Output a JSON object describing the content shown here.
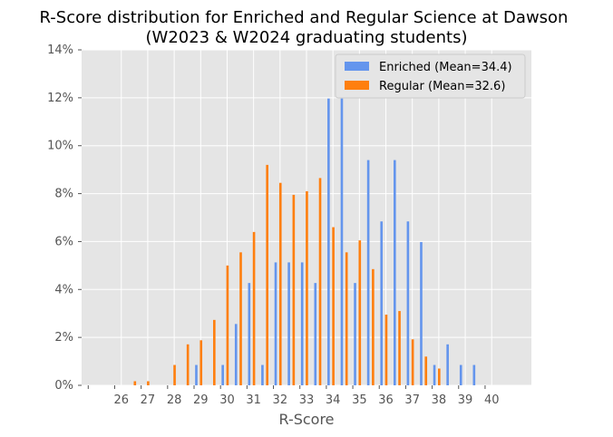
{
  "chart_data": {
    "type": "bar",
    "title": "R-Score distribution for Enriched and Regular Science at Dawson",
    "subtitle": "(W2023 & W2024 graduating students)",
    "xlabel": "R-Score",
    "ylabel": "",
    "x_ticks": [
      26,
      27,
      28,
      29,
      30,
      31,
      32,
      33,
      34,
      35,
      36,
      37,
      38,
      39,
      40
    ],
    "y_ticks": [
      "0%",
      "2%",
      "4%",
      "6%",
      "8%",
      "10%",
      "12%",
      "14%"
    ],
    "ylim": [
      0,
      14
    ],
    "xlim": [
      24.5,
      41.5
    ],
    "bin_width": 0.5,
    "grid": true,
    "legend_position": "top-right",
    "colors": {
      "enriched": "#6495ED",
      "regular": "#FF7F0E",
      "background": "#E5E5E5",
      "grid": "#FFFFFF"
    },
    "series": [
      {
        "name": "Enriched (Mean=34.4)",
        "color": "#6495ED",
        "offset": 0,
        "points": [
          {
            "x": 29,
            "y": 0.85
          },
          {
            "x": 30,
            "y": 0.85
          },
          {
            "x": 30.5,
            "y": 2.56
          },
          {
            "x": 31,
            "y": 4.27
          },
          {
            "x": 31.5,
            "y": 0.85
          },
          {
            "x": 32,
            "y": 5.13
          },
          {
            "x": 32.5,
            "y": 5.13
          },
          {
            "x": 33,
            "y": 5.13
          },
          {
            "x": 33.5,
            "y": 4.27
          },
          {
            "x": 34,
            "y": 11.97
          },
          {
            "x": 34.5,
            "y": 11.97
          },
          {
            "x": 35,
            "y": 4.27
          },
          {
            "x": 35.5,
            "y": 9.4
          },
          {
            "x": 36,
            "y": 6.84
          },
          {
            "x": 36.5,
            "y": 9.4
          },
          {
            "x": 37,
            "y": 6.84
          },
          {
            "x": 37.5,
            "y": 5.98
          },
          {
            "x": 38,
            "y": 0.85
          },
          {
            "x": 38.5,
            "y": 1.71
          },
          {
            "x": 39,
            "y": 0.85
          },
          {
            "x": 39.5,
            "y": 0.85
          }
        ]
      },
      {
        "name": "Regular (Mean=32.6)",
        "color": "#FF7F0E",
        "offset": 1,
        "points": [
          {
            "x": 26.5,
            "y": 0.17
          },
          {
            "x": 27,
            "y": 0.17
          },
          {
            "x": 28,
            "y": 0.85
          },
          {
            "x": 28.5,
            "y": 1.71
          },
          {
            "x": 29,
            "y": 1.88
          },
          {
            "x": 29.5,
            "y": 2.73
          },
          {
            "x": 30,
            "y": 5.0
          },
          {
            "x": 30.5,
            "y": 5.55
          },
          {
            "x": 31,
            "y": 6.4
          },
          {
            "x": 31.5,
            "y": 9.2
          },
          {
            "x": 32,
            "y": 8.45
          },
          {
            "x": 32.5,
            "y": 7.95
          },
          {
            "x": 33,
            "y": 8.1
          },
          {
            "x": 33.5,
            "y": 8.65
          },
          {
            "x": 34,
            "y": 6.6
          },
          {
            "x": 34.5,
            "y": 5.55
          },
          {
            "x": 35,
            "y": 6.05
          },
          {
            "x": 35.5,
            "y": 4.85
          },
          {
            "x": 36,
            "y": 2.95
          },
          {
            "x": 36.5,
            "y": 3.1
          },
          {
            "x": 37,
            "y": 1.92
          },
          {
            "x": 37.5,
            "y": 1.2
          },
          {
            "x": 38,
            "y": 0.7
          }
        ]
      }
    ]
  }
}
